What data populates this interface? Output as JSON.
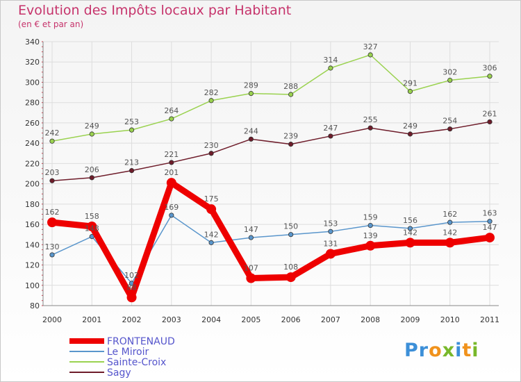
{
  "header": {
    "title": "Evolution des Impôts locaux par Habitant",
    "subtitle": "(en € et par an)"
  },
  "chart_data": {
    "type": "line",
    "title": "Evolution des Impôts locaux par Habitant",
    "subtitle": "(en € et par an)",
    "xlabel": "",
    "ylabel": "",
    "ylim": [
      80,
      340
    ],
    "yticks": [
      80,
      100,
      120,
      140,
      160,
      180,
      200,
      220,
      240,
      260,
      280,
      300,
      320,
      340
    ],
    "x": [
      "2000",
      "2001",
      "2002",
      "2003",
      "2004",
      "2005",
      "2006",
      "2007",
      "2008",
      "2009",
      "2010",
      "2011"
    ],
    "grid": true,
    "legend_position": "bottom-left",
    "series": [
      {
        "name": "Sagy",
        "color": "#6e1c2a",
        "values": [
          203,
          206,
          213,
          221,
          230,
          244,
          239,
          247,
          255,
          249,
          254,
          261
        ]
      },
      {
        "name": "Sainte-Croix",
        "color": "#9ad24f",
        "values": [
          242,
          249,
          253,
          264,
          282,
          289,
          288,
          314,
          327,
          291,
          302,
          306
        ]
      },
      {
        "name": "Le Miroir",
        "color": "#5a96cc",
        "values": [
          130,
          148,
          102,
          169,
          142,
          147,
          150,
          153,
          159,
          156,
          162,
          163
        ]
      },
      {
        "name": "FRONTENAUD",
        "color": "#ee0000",
        "values": [
          162,
          158,
          88,
          201,
          175,
          107,
          108,
          131,
          139,
          142,
          142,
          147
        ]
      }
    ],
    "legend": [
      {
        "name": "FRONTENAUD",
        "color": "#ee0000",
        "text_color": "#5555cc"
      },
      {
        "name": "Le Miroir",
        "color": "#5a96cc",
        "text_color": "#5555cc"
      },
      {
        "name": "Sainte-Croix",
        "color": "#9ad24f",
        "text_color": "#5555cc"
      },
      {
        "name": "Sagy",
        "color": "#6e1c2a",
        "text_color": "#5555cc"
      }
    ]
  },
  "logo": {
    "text": "Proxiti",
    "letter_colors": [
      "#3c8fd8",
      "#3c8fd8",
      "#f0921c",
      "#78b82a",
      "#3c8fd8",
      "#f0921c",
      "#78b82a"
    ]
  }
}
